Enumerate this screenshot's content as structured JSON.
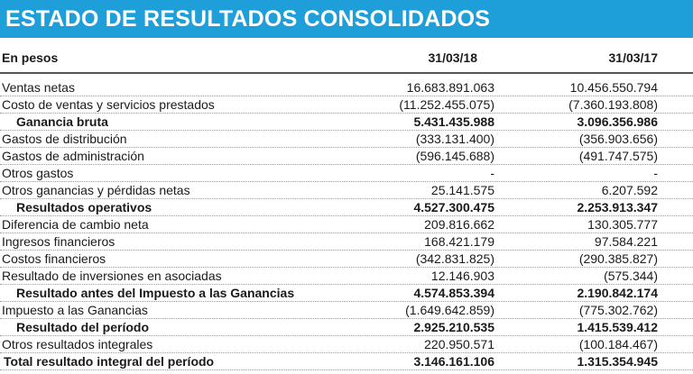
{
  "title": "ESTADO DE RESULTADOS CONSOLIDADOS",
  "header": {
    "label": "En pesos",
    "col1": "31/03/18",
    "col2": "31/03/17"
  },
  "rows": [
    {
      "label": "Ventas netas",
      "v1": "16.683.891.063",
      "v2": "10.456.550.794",
      "bold": false
    },
    {
      "label": "Costo de ventas y servicios prestados",
      "v1": "(11.252.455.075)",
      "v2": "(7.360.193.808)",
      "bold": false
    },
    {
      "label": "Ganancia bruta",
      "v1": "5.431.435.988",
      "v2": "3.096.356.986",
      "bold": true
    },
    {
      "label": "Gastos de distribución",
      "v1": "(333.131.400)",
      "v2": "(356.903.656)",
      "bold": false
    },
    {
      "label": "Gastos de administración",
      "v1": "(596.145.688)",
      "v2": "(491.747.575)",
      "bold": false
    },
    {
      "label": "Otros gastos",
      "v1": "-",
      "v2": "-",
      "bold": false
    },
    {
      "label": "Otros ganancias y pérdidas netas",
      "v1": "25.141.575",
      "v2": "6.207.592",
      "bold": false
    },
    {
      "label": "Resultados operativos",
      "v1": "4.527.300.475",
      "v2": "2.253.913.347",
      "bold": true
    },
    {
      "label": "Diferencia de cambio neta",
      "v1": "209.816.662",
      "v2": "130.305.777",
      "bold": false
    },
    {
      "label": "Ingresos financieros",
      "v1": "168.421.179",
      "v2": "97.584.221",
      "bold": false
    },
    {
      "label": "Costos financieros",
      "v1": "(342.831.825)",
      "v2": "(290.385.827)",
      "bold": false
    },
    {
      "label": "Resultado de inversiones en asociadas",
      "v1": "12.146.903",
      "v2": "(575.344)",
      "bold": false
    },
    {
      "label": "Resultado antes del Impuesto a las Ganancias",
      "v1": "4.574.853.394",
      "v2": "2.190.842.174",
      "bold": true
    },
    {
      "label": "Impuesto a las Ganancias",
      "v1": "(1.649.642.859)",
      "v2": "(775.302.762)",
      "bold": false
    },
    {
      "label": "Resultado del período",
      "v1": "2.925.210.535",
      "v2": "1.415.539.412",
      "bold": true
    },
    {
      "label": "Otros resultados integrales",
      "v1": "220.950.571",
      "v2": "(100.184.467)",
      "bold": false
    },
    {
      "label": "Total resultado integral del período",
      "v1": "3.146.161.106",
      "v2": "1.315.354.945",
      "bold": true,
      "total": true
    }
  ]
}
